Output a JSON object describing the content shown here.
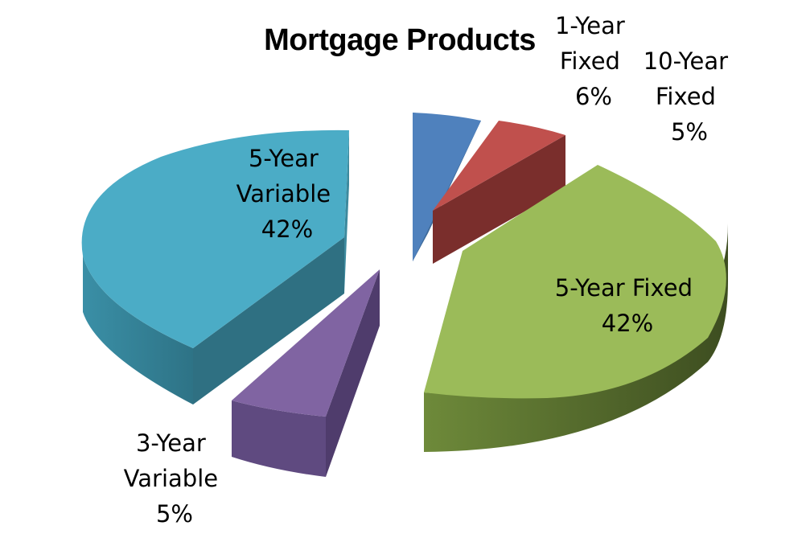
{
  "chart_data": {
    "type": "pie",
    "title": "Mortgage Products",
    "slices": [
      {
        "label_lines": [
          "1-Year",
          "Fixed",
          "6%"
        ],
        "name": "1-Year Fixed",
        "value": 6,
        "color": "#4F81BD"
      },
      {
        "label_lines": [
          "10-Year",
          "Fixed",
          "5%"
        ],
        "name": "10-Year Fixed",
        "value": 5,
        "color": "#C0504D"
      },
      {
        "label_lines": [
          "5-Year Fixed",
          "42%"
        ],
        "name": "5-Year Fixed",
        "value": 42,
        "color": "#9BBB59"
      },
      {
        "label_lines": [
          "3-Year",
          "Variable",
          "5%"
        ],
        "name": "3-Year Variable",
        "value": 5,
        "color": "#8064A2"
      },
      {
        "label_lines": [
          "5-Year",
          "Variable",
          "42%"
        ],
        "name": "5-Year Variable",
        "value": 42,
        "color": "#4BACC6"
      }
    ],
    "exploded": true,
    "style": "3d"
  }
}
